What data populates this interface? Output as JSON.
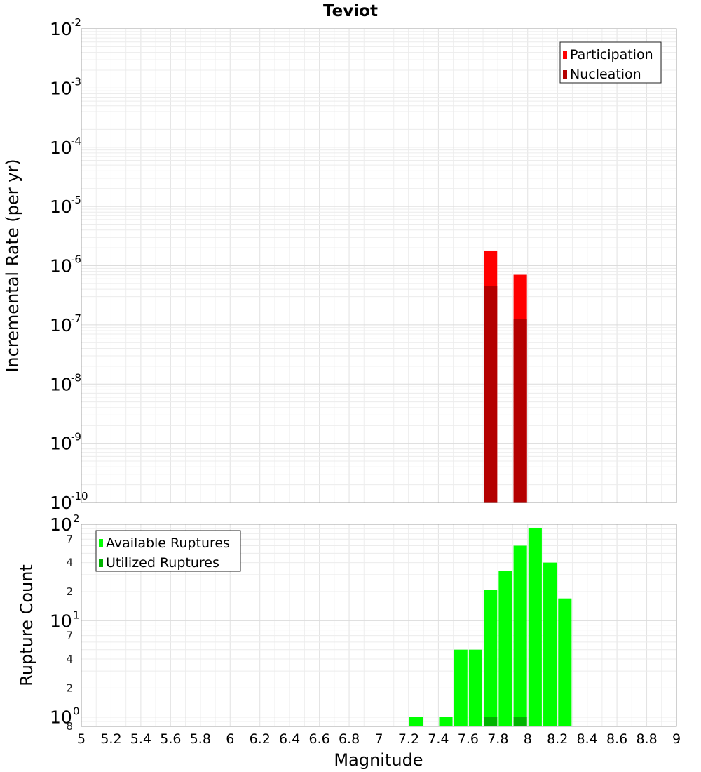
{
  "title": "Teviot",
  "chart_data": [
    {
      "type": "bar",
      "name": "rate-panel",
      "ylabel": "Incremental Rate (per yr)",
      "yscale": "log",
      "ylim": [
        1e-10,
        0.01
      ],
      "xlim": [
        5,
        9
      ],
      "bar_width": 0.09,
      "legend": "top-right",
      "grid": true,
      "ytick_exponents": [
        "-2",
        "-3",
        "-4",
        "-5",
        "-6",
        "-7",
        "-8",
        "-9",
        "-10"
      ],
      "ytick_base": "10",
      "series": [
        {
          "name": "Participation",
          "color": "#ff0000",
          "x": [
            7.75,
            7.95
          ],
          "values": [
            1.8e-06,
            7e-07
          ]
        },
        {
          "name": "Nucleation",
          "color": "#b40000",
          "x": [
            7.75,
            7.95
          ],
          "values": [
            4.5e-07,
            1.25e-07
          ]
        }
      ]
    },
    {
      "type": "bar",
      "name": "count-panel",
      "ylabel": "Rupture Count",
      "yscale": "log",
      "ylim": [
        0.8,
        100
      ],
      "xlim": [
        5,
        9
      ],
      "bar_width": 0.09,
      "legend": "top-left",
      "grid": true,
      "xlabel": "Magnitude",
      "xticks": [
        "5",
        "5.2",
        "5.4",
        "5.6",
        "5.8",
        "6",
        "6.2",
        "6.4",
        "6.6",
        "6.8",
        "7",
        "7.2",
        "7.4",
        "7.6",
        "7.8",
        "8",
        "8.2",
        "8.4",
        "8.6",
        "8.8",
        "9"
      ],
      "ytick_labels": [
        {
          "value": 100,
          "base": "10",
          "exp": "2"
        },
        {
          "value": 70,
          "minor": "7"
        },
        {
          "value": 40,
          "minor": "4"
        },
        {
          "value": 20,
          "minor": "2"
        },
        {
          "value": 10,
          "base": "10",
          "exp": "1"
        },
        {
          "value": 7,
          "minor": "7"
        },
        {
          "value": 4,
          "minor": "4"
        },
        {
          "value": 2,
          "minor": "2"
        },
        {
          "value": 1,
          "base": "10",
          "exp": "0"
        },
        {
          "value": 0.8,
          "minor": "8"
        }
      ],
      "series": [
        {
          "name": "Available Ruptures",
          "color": "#00ff00",
          "x": [
            7.25,
            7.45,
            7.55,
            7.65,
            7.75,
            7.85,
            7.95,
            8.05,
            8.15,
            8.25
          ],
          "values": [
            1,
            1,
            5,
            5,
            21,
            33,
            60,
            92,
            40,
            17
          ]
        },
        {
          "name": "Utilized Ruptures",
          "color": "#00b400",
          "x": [
            7.75,
            7.95
          ],
          "values": [
            1,
            1
          ]
        }
      ]
    }
  ]
}
